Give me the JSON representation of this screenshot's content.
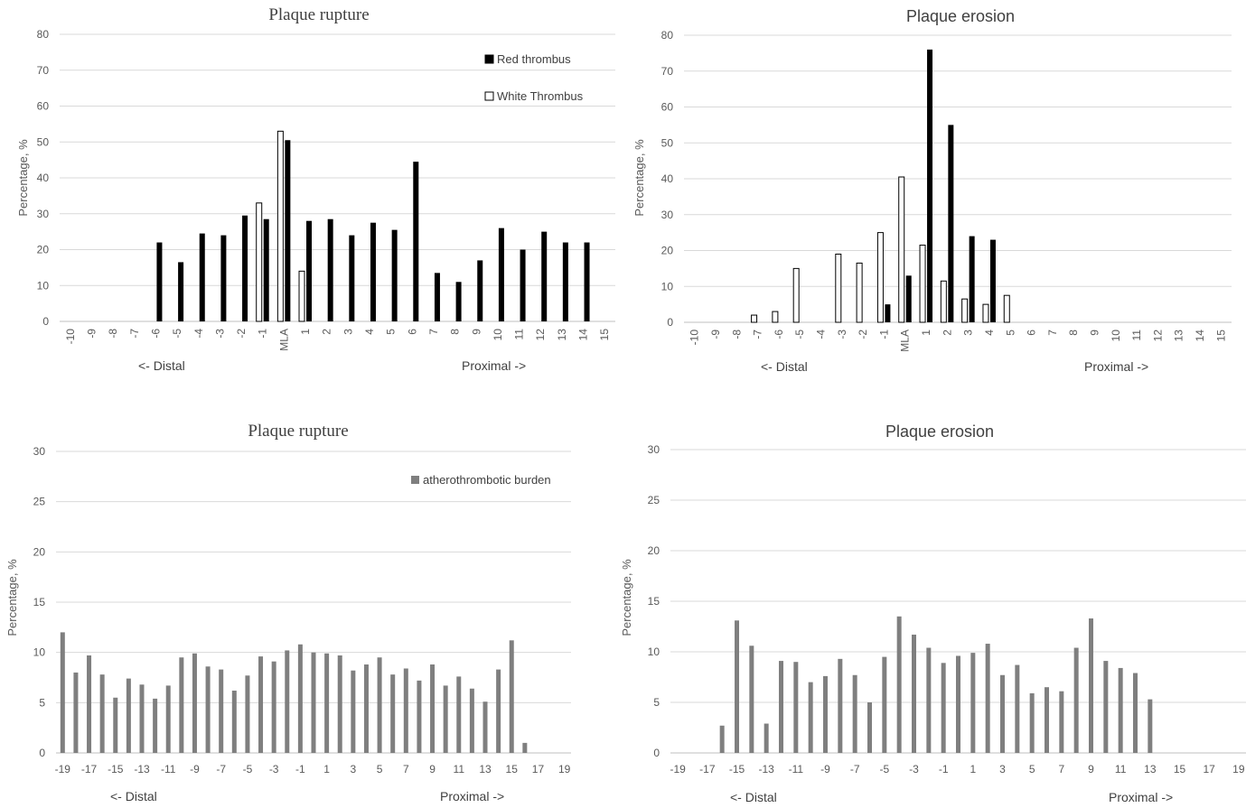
{
  "chart_data": [
    {
      "type": "bar",
      "title": "Plaque rupture",
      "ylabel": "Percentage, %",
      "ylim": [
        0,
        80
      ],
      "yticks": [
        0,
        10,
        20,
        30,
        40,
        50,
        60,
        70,
        80
      ],
      "categories": [
        "-10",
        "-9",
        "-8",
        "-7",
        "-6",
        "-5",
        "-4",
        "-3",
        "-2",
        "-1",
        "MLA",
        "1",
        "2",
        "3",
        "4",
        "5",
        "6",
        "7",
        "8",
        "9",
        "10",
        "11",
        "12",
        "13",
        "14",
        "15"
      ],
      "direction_left": "<- Distal",
      "direction_right": "Proximal ->",
      "legend_position": "top-right",
      "series": [
        {
          "name": "Red thrombus",
          "color": "#000000",
          "style": "solid",
          "values": [
            null,
            null,
            null,
            null,
            22,
            16.5,
            24.5,
            24,
            29.5,
            28.5,
            50.5,
            28,
            28.5,
            24,
            27.5,
            25.5,
            44.5,
            13.5,
            11,
            17,
            26,
            20,
            25,
            22,
            22,
            null
          ]
        },
        {
          "name": "White Thrombus",
          "color": "#ffffff",
          "style": "outline",
          "values": [
            null,
            null,
            null,
            null,
            null,
            null,
            null,
            null,
            null,
            33,
            53,
            14,
            null,
            null,
            null,
            null,
            null,
            null,
            null,
            null,
            null,
            null,
            null,
            null,
            null,
            null
          ]
        }
      ]
    },
    {
      "type": "bar",
      "title": "Plaque erosion",
      "ylabel": "Percentage, %",
      "ylim": [
        0,
        80
      ],
      "yticks": [
        0,
        10,
        20,
        30,
        40,
        50,
        60,
        70,
        80
      ],
      "categories": [
        "-10",
        "-9",
        "-8",
        "-7",
        "-6",
        "-5",
        "-4",
        "-3",
        "-2",
        "-1",
        "MLA",
        "1",
        "2",
        "3",
        "4",
        "5",
        "6",
        "7",
        "8",
        "9",
        "10",
        "11",
        "12",
        "13",
        "14",
        "15"
      ],
      "direction_left": "<- Distal",
      "direction_right": "Proximal ->",
      "series": [
        {
          "color": "#000000",
          "style": "solid",
          "values": [
            null,
            null,
            null,
            null,
            null,
            null,
            null,
            null,
            null,
            5,
            13,
            76,
            55,
            24,
            23,
            null,
            null,
            null,
            null,
            null,
            null,
            null,
            null,
            null,
            null,
            null
          ]
        },
        {
          "color": "#ffffff",
          "style": "outline",
          "values": [
            null,
            null,
            null,
            2,
            3,
            15,
            null,
            19,
            16.5,
            25,
            40.5,
            21.5,
            11.5,
            6.5,
            5,
            7.5,
            null,
            null,
            null,
            null,
            null,
            null,
            null,
            null,
            null,
            null
          ]
        }
      ]
    },
    {
      "type": "bar",
      "title": "Plaque rupture",
      "ylabel": "Percentage, %",
      "ylim": [
        0,
        30
      ],
      "yticks": [
        0,
        5,
        10,
        15,
        20,
        25,
        30
      ],
      "x": [
        -19,
        -18,
        -17,
        -16,
        -15,
        -14,
        -13,
        -12,
        -11,
        -10,
        -9,
        -8,
        -7,
        -6,
        -5,
        -4,
        -3,
        -2,
        -1,
        0,
        1,
        2,
        3,
        4,
        5,
        6,
        7,
        8,
        9,
        10,
        11,
        12,
        13,
        14,
        15,
        16,
        17,
        18,
        19
      ],
      "xtick_labels": [
        "-19",
        "-17",
        "-15",
        "-13",
        "-11",
        "-9",
        "-7",
        "-5",
        "-3",
        "-1",
        "1",
        "3",
        "5",
        "7",
        "9",
        "11",
        "13",
        "15",
        "17",
        "19"
      ],
      "direction_left": "<- Distal",
      "direction_right": "Proximal ->",
      "legend_position": "top-right",
      "series": [
        {
          "name": "atherothrombotic burden",
          "color": "#7f7f7f",
          "values": [
            12,
            8,
            9.7,
            7.8,
            5.5,
            7.4,
            6.8,
            5.4,
            6.7,
            9.5,
            9.9,
            8.6,
            8.3,
            6.2,
            7.7,
            9.6,
            9.1,
            10.2,
            10.8,
            10,
            9.9,
            9.7,
            8.2,
            8.8,
            9.5,
            7.8,
            8.4,
            7.2,
            8.8,
            6.7,
            7.6,
            6.4,
            5.1,
            8.3,
            11.2,
            1,
            null,
            null,
            null
          ]
        }
      ]
    },
    {
      "type": "bar",
      "title": "Plaque erosion",
      "ylabel": "Percentage, %",
      "ylim": [
        0,
        30
      ],
      "yticks": [
        0,
        5,
        10,
        15,
        20,
        25,
        30
      ],
      "x": [
        -19,
        -18,
        -17,
        -16,
        -15,
        -14,
        -13,
        -12,
        -11,
        -10,
        -9,
        -8,
        -7,
        -6,
        -5,
        -4,
        -3,
        -2,
        -1,
        0,
        1,
        2,
        3,
        4,
        5,
        6,
        7,
        8,
        9,
        10,
        11,
        12,
        13,
        14,
        15,
        16,
        17,
        18,
        19
      ],
      "xtick_labels": [
        "-19",
        "-17",
        "-15",
        "-13",
        "-11",
        "-9",
        "-7",
        "-5",
        "-3",
        "-1",
        "1",
        "3",
        "5",
        "7",
        "9",
        "11",
        "13",
        "15",
        "17",
        "19"
      ],
      "direction_left": "<- Distal",
      "direction_right": "Proximal ->",
      "series": [
        {
          "color": "#7f7f7f",
          "values": [
            null,
            null,
            null,
            2.7,
            13.1,
            10.6,
            2.9,
            9.1,
            9,
            7,
            7.6,
            9.3,
            7.7,
            5,
            9.5,
            13.5,
            11.7,
            10.4,
            8.9,
            9.6,
            9.9,
            10.8,
            7.7,
            8.7,
            5.9,
            6.5,
            6.1,
            10.4,
            13.3,
            9.1,
            8.4,
            7.9,
            5.3,
            null,
            null,
            null,
            null,
            null,
            null
          ]
        }
      ]
    }
  ]
}
